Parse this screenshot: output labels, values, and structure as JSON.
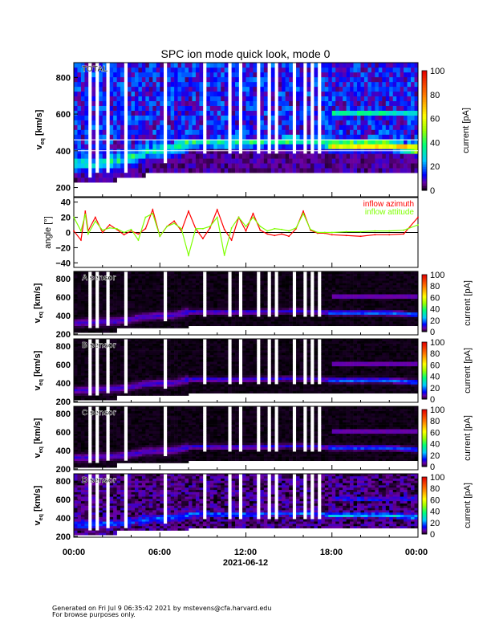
{
  "chart_data": {
    "title": "SPC ion mode quick look, mode 0",
    "type": "heatmap",
    "xlabel": "2021-06-12",
    "x_tick_labels": [
      "00:00",
      "06:00",
      "12:00",
      "18:00",
      "00:00"
    ],
    "x_range_hours": [
      0,
      24
    ],
    "colorbar_label": "current [pA]",
    "colorbar_ticks": [
      "0",
      "20",
      "40",
      "60",
      "80",
      "100"
    ],
    "colorbar_range": [
      0,
      100
    ],
    "band_hours": [
      0,
      1,
      2,
      3,
      4,
      5,
      6,
      7,
      8,
      9,
      10,
      11,
      12,
      13,
      14,
      15,
      16,
      17,
      18,
      19,
      20,
      21,
      22,
      23,
      24
    ],
    "band_center_kms": [
      320,
      325,
      335,
      340,
      360,
      390,
      400,
      405,
      440,
      445,
      440,
      440,
      440,
      445,
      445,
      450,
      450,
      445,
      430,
      430,
      430,
      430,
      430,
      420,
      410
    ],
    "gap_hours": [
      1.2,
      1.6,
      2.4,
      3.6,
      6.4,
      8.0,
      9.2,
      10.0,
      10.9,
      11.6,
      12.5,
      12.9,
      13.6,
      14.1,
      15.4,
      16.1,
      16.6,
      17.1
    ],
    "panels": [
      {
        "name": "TOTAL",
        "ylabel": "v",
        "ylabel_sub": "eq",
        "ylabel_unit": " [km/s]",
        "y_ticks": [
          "200",
          "400",
          "600",
          "800"
        ],
        "y_range": [
          150,
          880
        ],
        "peak_pA": [
          25,
          30,
          70
        ]
      },
      {
        "name": "A sensor",
        "ylabel": "v",
        "ylabel_sub": "eq",
        "ylabel_unit": " [km/s]",
        "y_ticks": [
          "200",
          "400",
          "600",
          "800"
        ],
        "y_range": [
          190,
          880
        ],
        "peak_pA": [
          10,
          12,
          22
        ]
      },
      {
        "name": "B sensor",
        "ylabel": "v",
        "ylabel_sub": "eq",
        "ylabel_unit": " [km/s]",
        "y_ticks": [
          "200",
          "400",
          "600",
          "800"
        ],
        "y_range": [
          190,
          880
        ],
        "peak_pA": [
          10,
          12,
          22
        ]
      },
      {
        "name": "C sensor",
        "ylabel": "v",
        "ylabel_sub": "eq",
        "ylabel_unit": " [km/s]",
        "y_ticks": [
          "200",
          "400",
          "600",
          "800"
        ],
        "y_range": [
          190,
          880
        ],
        "peak_pA": [
          10,
          12,
          20
        ]
      },
      {
        "name": "D sensor",
        "ylabel": "v",
        "ylabel_sub": "eq",
        "ylabel_unit": " [km/s]",
        "y_ticks": [
          "200",
          "400",
          "600",
          "800"
        ],
        "y_range": [
          190,
          880
        ],
        "peak_pA": [
          14,
          16,
          24
        ]
      }
    ],
    "angle_panel": {
      "ylabel": "angle [°]",
      "y_ticks": [
        "40",
        "20",
        "0",
        "−20",
        "−40"
      ],
      "y_range": [
        -46,
        46
      ],
      "series": [
        {
          "name": "inflow azimuth",
          "color": "#ff0000",
          "x": [
            0,
            0.5,
            0.8,
            1,
            1.5,
            2,
            2.5,
            3,
            3.5,
            4,
            4.5,
            5,
            5.5,
            6,
            6.5,
            7,
            7.5,
            8,
            8.5,
            9,
            9.5,
            10,
            10.5,
            11,
            11.5,
            12,
            12.5,
            13,
            13.5,
            14,
            14.5,
            15,
            15.5,
            16,
            16.5,
            17,
            17.5,
            18,
            19,
            20,
            21,
            22,
            23,
            24
          ],
          "y": [
            2,
            -10,
            28,
            2,
            20,
            0,
            10,
            4,
            -3,
            2,
            -2,
            5,
            30,
            -5,
            8,
            15,
            2,
            28,
            5,
            -8,
            6,
            30,
            4,
            -10,
            20,
            2,
            25,
            3,
            -2,
            -4,
            -2,
            -5,
            5,
            28,
            3,
            -1,
            -1,
            -3,
            -4,
            -5,
            -3,
            -3,
            -2,
            20
          ]
        },
        {
          "name": "inflow attitude",
          "color": "#7fff00",
          "x": [
            0,
            0.5,
            0.8,
            1,
            1.5,
            2,
            2.5,
            3,
            3.5,
            4,
            4.5,
            5,
            5.5,
            6,
            6.5,
            7,
            7.5,
            8,
            8.5,
            9,
            9.5,
            10,
            10.5,
            11,
            11.5,
            12,
            12.5,
            13,
            13.5,
            14,
            14.5,
            15,
            15.5,
            16,
            16.5,
            17,
            17.5,
            18,
            19,
            20,
            21,
            22,
            23,
            24
          ],
          "y": [
            20,
            2,
            24,
            -2,
            15,
            3,
            6,
            5,
            0,
            4,
            -10,
            20,
            25,
            -5,
            8,
            12,
            5,
            -30,
            5,
            5,
            8,
            20,
            -30,
            6,
            20,
            8,
            20,
            8,
            2,
            5,
            4,
            2,
            6,
            25,
            4,
            0,
            0,
            0,
            1,
            1,
            2,
            2,
            3,
            10
          ]
        }
      ]
    }
  },
  "footer": {
    "line1": "Generated on Fri Jul  9 06:35:42 2021 by mstevens@cfa.harvard.edu",
    "line2": "For browse purposes only."
  }
}
